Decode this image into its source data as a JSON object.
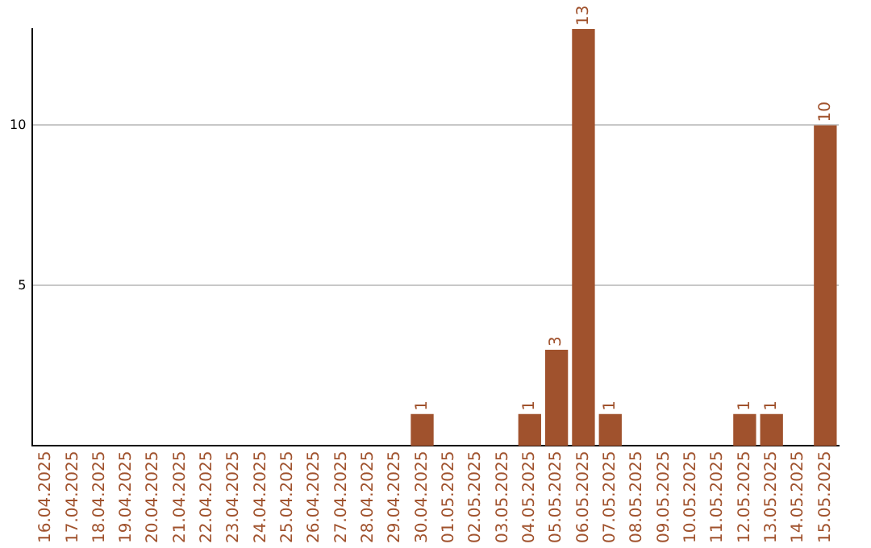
{
  "chart_data": {
    "type": "bar",
    "categories": [
      "16.04.2025",
      "17.04.2025",
      "18.04.2025",
      "19.04.2025",
      "20.04.2025",
      "21.04.2025",
      "22.04.2025",
      "23.04.2025",
      "24.04.2025",
      "25.04.2025",
      "26.04.2025",
      "27.04.2025",
      "28.04.2025",
      "29.04.2025",
      "30.04.2025",
      "01.05.2025",
      "02.05.2025",
      "03.05.2025",
      "04.05.2025",
      "05.05.2025",
      "06.05.2025",
      "07.05.2025",
      "08.05.2025",
      "09.05.2025",
      "10.05.2025",
      "11.05.2025",
      "12.05.2025",
      "13.05.2025",
      "14.05.2025",
      "15.05.2025"
    ],
    "values": [
      0,
      0,
      0,
      0,
      0,
      0,
      0,
      0,
      0,
      0,
      0,
      0,
      0,
      0,
      1,
      0,
      0,
      0,
      1,
      3,
      13,
      1,
      0,
      0,
      0,
      0,
      1,
      1,
      0,
      10
    ],
    "value_labels": [
      null,
      null,
      null,
      null,
      null,
      null,
      null,
      null,
      null,
      null,
      null,
      null,
      null,
      null,
      "1",
      null,
      null,
      null,
      "1",
      "3",
      "13",
      "1",
      null,
      null,
      null,
      null,
      "1",
      "1",
      null,
      "10"
    ],
    "color": "#a0522d",
    "ylim": [
      0,
      13
    ],
    "yticks": [
      5,
      10
    ],
    "grid": "y",
    "legend": false
  }
}
